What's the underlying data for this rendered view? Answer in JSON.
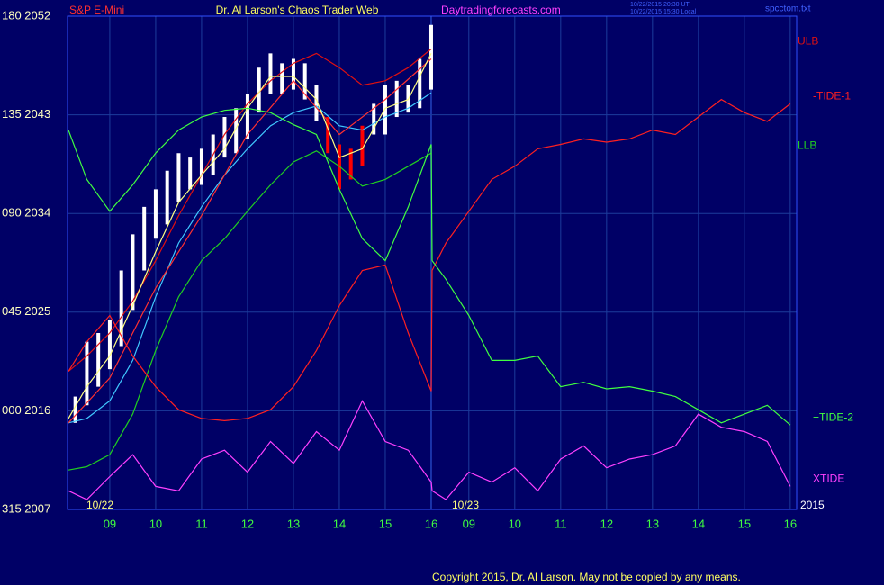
{
  "chart_data": {
    "type": "line",
    "symbol": "S&P E-Mini",
    "title": "Dr. Al Larson's Chaos Trader Web",
    "website": "Daytradingforecasts.com",
    "timestamps": [
      "10/22/2015 20:30 UT",
      "10/22/2015 15:30 Local"
    ],
    "file": "spcctom.txt",
    "date_labels": [
      "10/22",
      "10/23"
    ],
    "year": "2015",
    "copyright": "Copyright 2015, Dr. Al Larson. May not be copied by any means.",
    "xlim": [
      [
        8.08,
        16
      ],
      [
        32.18,
        40.14
      ]
    ],
    "xticks": [
      {
        "value": 9,
        "label": "09"
      },
      10,
      11,
      12,
      13,
      14,
      15,
      16,
      {
        "value": 33,
        "label": "09"
      },
      {
        "value": 34,
        "label": "10"
      },
      {
        "value": 35,
        "label": "11"
      },
      {
        "value": 36,
        "label": "12"
      },
      {
        "value": 37,
        "label": "13"
      },
      {
        "value": 38,
        "label": "14"
      },
      {
        "value": 39,
        "label": "15"
      },
      {
        "value": 40,
        "label": "16"
      }
    ],
    "ylim": [
      2007,
      2052
    ],
    "yticks": [
      {
        "value": 2007,
        "label": "315 2007"
      },
      {
        "value": 2016,
        "label": "000 2016"
      },
      {
        "value": 2025,
        "label": "045 2025"
      },
      {
        "value": 2034,
        "label": "090 2034"
      },
      {
        "value": 2043,
        "label": "135 2043"
      },
      {
        "value": 2052,
        "label": "180 2052"
      }
    ],
    "grid": true,
    "price_bars": [
      {
        "color": "#ffffff",
        "x": [
          8.25,
          8.5,
          8.75,
          9,
          9.25,
          9.5,
          9.75,
          10,
          10.25,
          10.5,
          10.75,
          11,
          11.25,
          11.5,
          11.75,
          12,
          12.25,
          12.5,
          12.75,
          13,
          13.25,
          13.5,
          14.75,
          15,
          15.25,
          15.5,
          15.75,
          16
        ],
        "high": [
          2017.3,
          2022.3,
          2023.1,
          2024.3,
          2028.8,
          2032.1,
          2034.6,
          2036.2,
          2037.9,
          2039.5,
          2039.1,
          2039.9,
          2041.2,
          2042.8,
          2043.6,
          2044.9,
          2047.3,
          2048.6,
          2047.7,
          2048.1,
          2047.7,
          2045.7,
          2044.0,
          2045.7,
          2046.1,
          2045.7,
          2048.1,
          2051.2
        ],
        "low": [
          2014.9,
          2016.5,
          2018.2,
          2019.8,
          2021.9,
          2025.2,
          2028.8,
          2031.7,
          2033.0,
          2035.0,
          2036.2,
          2036.6,
          2037.5,
          2039.1,
          2039.5,
          2040.8,
          2043.2,
          2044.9,
          2044.9,
          2045.3,
          2044.4,
          2042.4,
          2041.2,
          2041.2,
          2042.8,
          2043.2,
          2043.6,
          2045.3
        ]
      },
      {
        "color": "#ff0000",
        "x": [
          13.75,
          14,
          14.25,
          14.5
        ],
        "high": [
          2042.8,
          2040.3,
          2039.9,
          2042.0
        ],
        "low": [
          2039.5,
          2036.2,
          2037.1,
          2038.3
        ]
      }
    ],
    "series": [
      {
        "name": "ULB",
        "color": "#e01010",
        "x": [
          8.1,
          8.5,
          9,
          9.5,
          10,
          10.5,
          11,
          11.5,
          12,
          12.5,
          13,
          13.5,
          14,
          14.5,
          15,
          15.5,
          16
        ],
        "values": [
          2019.6,
          2021.0,
          2023.1,
          2026.0,
          2029.7,
          2033.8,
          2037.5,
          2041.2,
          2044.0,
          2046.1,
          2047.7,
          2048.6,
          2047.3,
          2045.7,
          2046.1,
          2047.3,
          2049.0
        ]
      },
      {
        "name": "LLB",
        "color": "#20d020",
        "x": [
          8.1,
          8.5,
          9,
          9.5,
          10,
          10.5,
          11,
          11.5,
          12,
          12.5,
          13,
          13.5,
          14,
          14.5,
          15,
          15.5,
          16
        ],
        "values": [
          2010.6,
          2010.9,
          2012.0,
          2015.7,
          2021.5,
          2026.4,
          2029.7,
          2031.7,
          2034.2,
          2036.6,
          2038.7,
          2039.7,
          2038.3,
          2036.5,
          2037.1,
          2038.3,
          2039.5
        ]
      },
      {
        "color": "#40c8ff",
        "x": [
          8.1,
          8.5,
          9,
          9.5,
          10,
          10.5,
          11,
          11.5,
          12,
          12.5,
          13,
          13.5,
          14,
          14.5,
          15,
          15.5,
          16
        ],
        "values": [
          2014.9,
          2015.3,
          2016.9,
          2020.6,
          2026.4,
          2031.3,
          2034.6,
          2037.5,
          2039.9,
          2042.0,
          2043.2,
          2043.8,
          2042.0,
          2041.6,
          2042.8,
          2043.6,
          2045.0
        ]
      },
      {
        "color": "#ff3030",
        "x": [
          8.1,
          9,
          10,
          11,
          12,
          13,
          14,
          15,
          16
        ],
        "values": [
          2014.9,
          2019.0,
          2027.2,
          2033.8,
          2041.2,
          2046.1,
          2041.2,
          2044.4,
          2048.1
        ]
      },
      {
        "color": "#ffff80",
        "x": [
          8.1,
          8.5,
          9,
          9.5,
          10,
          10.5,
          11,
          11.5,
          12,
          12.5,
          13,
          13.5,
          14,
          14.5,
          15,
          15.5,
          16
        ],
        "values": [
          2015.3,
          2018.2,
          2021.0,
          2025.6,
          2030.5,
          2035.0,
          2037.5,
          2039.9,
          2043.6,
          2046.5,
          2046.5,
          2044.4,
          2039.1,
          2039.9,
          2043.6,
          2044.4,
          2048.6
        ]
      },
      {
        "name": "-TIDE-1",
        "color": "#ff2020",
        "x": [
          8.1,
          8.5,
          9,
          9.5,
          10,
          10.5,
          11,
          11.5,
          12,
          12.5,
          13,
          13.5,
          14,
          14.5,
          15,
          15.5,
          16,
          32.2,
          32.5,
          33,
          33.5,
          34,
          34.5,
          35,
          35.5,
          36,
          36.5,
          37,
          37.5,
          38,
          38.5,
          39,
          39.5,
          40
        ],
        "values": [
          2019.6,
          2022.3,
          2024.7,
          2021.0,
          2018.2,
          2016.1,
          2015.3,
          2015.1,
          2015.3,
          2016.1,
          2018.2,
          2021.5,
          2025.6,
          2028.8,
          2029.3,
          2023.1,
          2017.8,
          2028.8,
          2031.3,
          2034.2,
          2037.1,
          2038.3,
          2039.9,
          2040.3,
          2040.8,
          2040.5,
          2040.8,
          2041.6,
          2041.2,
          2042.8,
          2044.4,
          2043.2,
          2042.4,
          2044.0
        ]
      },
      {
        "name": "+TIDE-2",
        "color": "#40ff40",
        "x": [
          8.1,
          8.5,
          9,
          9.5,
          10,
          10.5,
          11,
          11.5,
          12,
          12.5,
          13,
          13.5,
          14,
          14.5,
          15,
          15.5,
          16,
          32.2,
          32.5,
          33,
          33.5,
          34,
          34.5,
          35,
          35.5,
          36,
          36.5,
          37,
          37.5,
          38,
          38.5,
          39,
          39.5,
          40
        ],
        "values": [
          2041.6,
          2037.1,
          2034.2,
          2036.6,
          2039.5,
          2041.6,
          2042.8,
          2043.4,
          2043.6,
          2043.2,
          2042.1,
          2041.2,
          2036.2,
          2031.7,
          2029.7,
          2034.6,
          2040.3,
          2029.7,
          2028.0,
          2024.7,
          2020.6,
          2020.6,
          2021.0,
          2018.2,
          2018.6,
          2018.0,
          2018.2,
          2017.8,
          2017.3,
          2016.1,
          2014.9,
          2015.7,
          2016.5,
          2014.7
        ]
      },
      {
        "name": "XTIDE",
        "color": "#ff40ff",
        "x": [
          8.1,
          8.5,
          9,
          9.5,
          10,
          10.5,
          11,
          11.5,
          12,
          12.5,
          13,
          13.5,
          14,
          14.5,
          15,
          15.5,
          16,
          32.2,
          32.5,
          33,
          33.5,
          34,
          34.5,
          35,
          35.5,
          36,
          36.5,
          37,
          37.5,
          38,
          38.5,
          39,
          39.5,
          40
        ],
        "values": [
          2008.7,
          2007.9,
          2010.0,
          2012.0,
          2009.1,
          2008.7,
          2011.6,
          2012.4,
          2010.4,
          2013.2,
          2011.2,
          2014.1,
          2012.4,
          2016.9,
          2013.2,
          2012.4,
          2009.5,
          2008.7,
          2007.9,
          2010.4,
          2009.5,
          2010.8,
          2008.7,
          2011.6,
          2012.8,
          2010.8,
          2011.6,
          2012.0,
          2012.8,
          2015.7,
          2014.5,
          2014.1,
          2013.2,
          2009.1
        ]
      }
    ]
  }
}
